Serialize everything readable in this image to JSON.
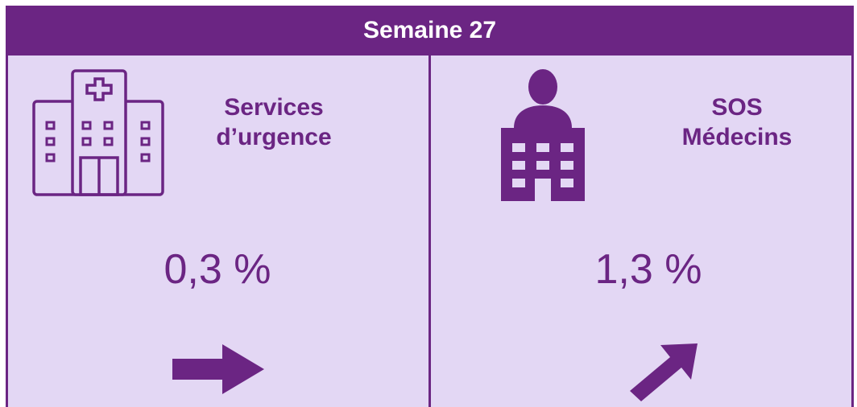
{
  "header": {
    "title": "Semaine 27"
  },
  "panels": [
    {
      "title_lines": [
        "Services",
        "d’urgence"
      ],
      "value": "0,3 %"
    },
    {
      "title_lines": [
        "SOS",
        "Médecins"
      ],
      "value": "1,3 %"
    }
  ]
}
